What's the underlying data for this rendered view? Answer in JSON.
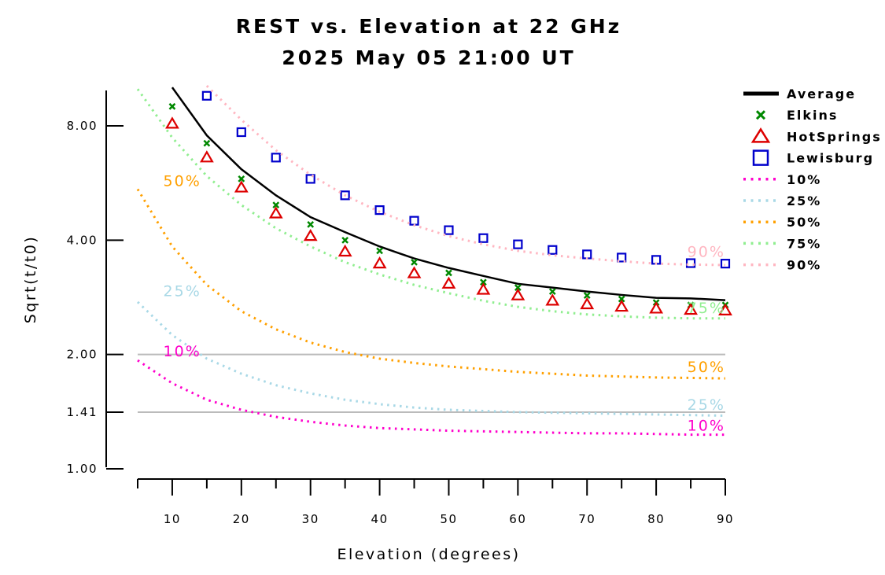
{
  "chart_data": {
    "type": "scatter",
    "title": "REST vs. Elevation at 22 GHz",
    "subtitle": "2025 May 05 21:00 UT",
    "xlabel": "Elevation (degrees)",
    "ylabel": "Sqrt(t/t0)",
    "log_y": true,
    "xlim": [
      5,
      90
    ],
    "ylim": [
      1,
      10
    ],
    "x_ticks": [
      10,
      20,
      30,
      40,
      50,
      60,
      70,
      80,
      90
    ],
    "x_tick_labels": [
      "10",
      "20",
      "30",
      "40",
      "50",
      "60",
      "70",
      "80",
      "90"
    ],
    "y_ticks": [
      1.0,
      1.41,
      2.0,
      4.0,
      8.0
    ],
    "y_tick_labels": [
      "1.00",
      "1.41",
      "2.00",
      "4.00",
      "8.00"
    ],
    "reference_lines": [
      1.41,
      2.0
    ],
    "reference_line_color": "#bbbbbb",
    "legend_position": "right",
    "series": [
      {
        "name": "Average",
        "kind": "line",
        "color": "#000000",
        "x": [
          10,
          15,
          20,
          25,
          30,
          35,
          40,
          45,
          50,
          55,
          60,
          65,
          70,
          75,
          80,
          85,
          90
        ],
        "y": [
          10.1,
          7.55,
          6.15,
          5.25,
          4.6,
          4.2,
          3.85,
          3.58,
          3.38,
          3.22,
          3.07,
          3.0,
          2.93,
          2.87,
          2.82,
          2.81,
          2.78
        ]
      },
      {
        "name": "Elkins",
        "kind": "marker",
        "marker": "x",
        "color": "#008800",
        "x": [
          10,
          15,
          20,
          25,
          30,
          35,
          40,
          45,
          50,
          55,
          60,
          65,
          70,
          75,
          80,
          85,
          90
        ],
        "y": [
          9.0,
          7.2,
          5.8,
          4.95,
          4.4,
          4.0,
          3.75,
          3.5,
          3.28,
          3.1,
          3.0,
          2.93,
          2.86,
          2.8,
          2.74,
          2.7,
          2.7
        ]
      },
      {
        "name": "HotSprings",
        "kind": "marker",
        "marker": "triangle",
        "color": "#dd0000",
        "x": [
          10,
          15,
          20,
          25,
          30,
          35,
          40,
          45,
          50,
          55,
          60,
          65,
          70,
          75,
          80,
          85,
          90
        ],
        "y": [
          8.1,
          6.6,
          5.5,
          4.7,
          4.1,
          3.73,
          3.47,
          3.27,
          3.07,
          2.96,
          2.86,
          2.77,
          2.71,
          2.67,
          2.64,
          2.62,
          2.61
        ]
      },
      {
        "name": "Lewisburg",
        "kind": "marker",
        "marker": "square",
        "color": "#0000cc",
        "x": [
          15,
          20,
          25,
          30,
          35,
          40,
          45,
          50,
          55,
          60,
          65,
          70,
          75,
          80,
          85,
          90
        ],
        "y": [
          9.6,
          7.7,
          6.6,
          5.8,
          5.25,
          4.8,
          4.5,
          4.25,
          4.05,
          3.9,
          3.77,
          3.67,
          3.6,
          3.55,
          3.48,
          3.47
        ]
      },
      {
        "name": "10%",
        "kind": "dotted",
        "color": "#ff00cc",
        "x": [
          5,
          10,
          15,
          20,
          25,
          30,
          35,
          40,
          45,
          50,
          55,
          60,
          65,
          70,
          75,
          80,
          85,
          90
        ],
        "y": [
          1.93,
          1.68,
          1.52,
          1.43,
          1.37,
          1.33,
          1.3,
          1.28,
          1.27,
          1.26,
          1.255,
          1.25,
          1.245,
          1.24,
          1.24,
          1.235,
          1.23,
          1.23
        ]
      },
      {
        "name": "25%",
        "kind": "dotted",
        "color": "#a8d8e6",
        "x": [
          5,
          10,
          15,
          20,
          25,
          30,
          35,
          40,
          45,
          50,
          55,
          60,
          65,
          70,
          75,
          80,
          85,
          90
        ],
        "y": [
          2.75,
          2.25,
          1.95,
          1.78,
          1.66,
          1.58,
          1.52,
          1.48,
          1.45,
          1.43,
          1.42,
          1.41,
          1.405,
          1.4,
          1.395,
          1.39,
          1.385,
          1.38
        ]
      },
      {
        "name": "50%",
        "kind": "dotted",
        "color": "#ffa000",
        "x": [
          5,
          10,
          15,
          20,
          25,
          30,
          35,
          40,
          45,
          50,
          55,
          60,
          65,
          70,
          75,
          80,
          85,
          90
        ],
        "y": [
          5.45,
          3.85,
          3.05,
          2.6,
          2.33,
          2.15,
          2.03,
          1.95,
          1.9,
          1.86,
          1.83,
          1.8,
          1.78,
          1.76,
          1.75,
          1.74,
          1.735,
          1.73
        ]
      },
      {
        "name": "75%",
        "kind": "dotted",
        "color": "#90ee90",
        "x": [
          5,
          10,
          15,
          20,
          25,
          30,
          35,
          40,
          45,
          50,
          55,
          60,
          65,
          70,
          75,
          80,
          85,
          90
        ],
        "y": [
          10.0,
          7.45,
          5.9,
          4.95,
          4.3,
          3.85,
          3.5,
          3.25,
          3.05,
          2.9,
          2.77,
          2.67,
          2.6,
          2.55,
          2.52,
          2.5,
          2.49,
          2.49
        ]
      },
      {
        "name": "90%",
        "kind": "dotted",
        "color": "#ffb6c1",
        "x": [
          15,
          20,
          25,
          30,
          35,
          40,
          45,
          50,
          55,
          60,
          65,
          70,
          75,
          80,
          85,
          90
        ],
        "y": [
          10.2,
          8.3,
          6.9,
          5.95,
          5.25,
          4.75,
          4.38,
          4.1,
          3.9,
          3.75,
          3.65,
          3.58,
          3.52,
          3.47,
          3.45,
          3.44
        ]
      }
    ],
    "curve_labels": [
      {
        "series": "50%",
        "text": "50%",
        "x": 8.7,
        "y": 5.55
      },
      {
        "series": "25%",
        "text": "25%",
        "x": 8.7,
        "y": 2.85
      },
      {
        "series": "10%",
        "text": "10%",
        "x": 8.7,
        "y": 1.98
      },
      {
        "series": "90%",
        "text": "90%",
        "x": 84.5,
        "y": 3.62
      },
      {
        "series": "75%",
        "text": "75%",
        "x": 84.5,
        "y": 2.57
      },
      {
        "series": "50%",
        "text": "50%",
        "x": 84.5,
        "y": 1.8
      },
      {
        "series": "25%",
        "text": "25%",
        "x": 84.5,
        "y": 1.43
      },
      {
        "series": "10%",
        "text": "10%",
        "x": 84.5,
        "y": 1.26
      }
    ]
  }
}
